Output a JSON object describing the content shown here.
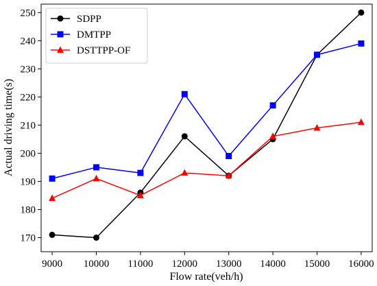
{
  "chart_data": {
    "type": "line",
    "xlabel": "Flow rate(veh/h)",
    "ylabel": "Actual driving time(s)",
    "x": [
      9000,
      10000,
      11000,
      12000,
      13000,
      14000,
      15000,
      16000
    ],
    "xlim": [
      8750,
      16250
    ],
    "ylim": [
      165,
      253
    ],
    "yticks": [
      170,
      180,
      190,
      200,
      210,
      220,
      230,
      240,
      250
    ],
    "legend_position": "top-left",
    "grid": false,
    "series": [
      {
        "name": "SDPP",
        "color": "#000000",
        "marker": "circle",
        "values": [
          171,
          170,
          186,
          206,
          192,
          205,
          235,
          250
        ]
      },
      {
        "name": "DMTPP",
        "color": "#0000ff",
        "marker": "square",
        "values": [
          191,
          195,
          193,
          221,
          199,
          217,
          235,
          239
        ]
      },
      {
        "name": "DSTTPP-OF",
        "color": "#ff0000",
        "marker": "triangle",
        "values": [
          184,
          191,
          185,
          193,
          192,
          206,
          209,
          211
        ]
      }
    ]
  }
}
